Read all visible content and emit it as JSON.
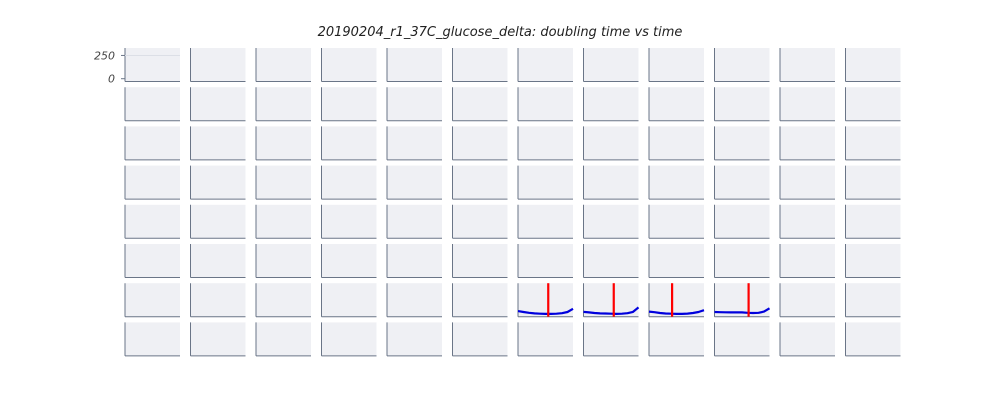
{
  "chart_data": {
    "type": "line",
    "title": "20190204_r1_37C_glucose_delta: doubling time vs time",
    "grid": {
      "rows": 8,
      "cols": 12
    },
    "y_ticks": [
      "250",
      "0"
    ],
    "ylim": [
      -30,
      330
    ],
    "colors": {
      "panel_bg": "#eff0f4",
      "axis": "#6a7587",
      "curve": "#0000dd",
      "marker": "#ff0000"
    },
    "series": [
      {
        "name": "row7-col7",
        "row": 6,
        "col": 6,
        "x": [
          0,
          0.1,
          0.2,
          0.3,
          0.4,
          0.5,
          0.6,
          0.7,
          0.8,
          0.9,
          1.0
        ],
        "y": [
          30,
          20,
          12,
          6,
          2,
          0,
          0,
          2,
          8,
          20,
          55
        ],
        "marker_x": 0.55
      },
      {
        "name": "row7-col8",
        "row": 6,
        "col": 7,
        "x": [
          0,
          0.1,
          0.2,
          0.3,
          0.4,
          0.5,
          0.6,
          0.7,
          0.8,
          0.9,
          1.0
        ],
        "y": [
          22,
          16,
          10,
          6,
          4,
          2,
          0,
          2,
          8,
          22,
          70
        ],
        "marker_x": 0.55
      },
      {
        "name": "row7-col9",
        "row": 6,
        "col": 8,
        "x": [
          0,
          0.1,
          0.2,
          0.3,
          0.4,
          0.5,
          0.6,
          0.7,
          0.8,
          0.9,
          1.0
        ],
        "y": [
          25,
          18,
          10,
          4,
          2,
          0,
          0,
          3,
          10,
          20,
          40
        ],
        "marker_x": 0.42
      },
      {
        "name": "row7-col10",
        "row": 6,
        "col": 9,
        "x": [
          0,
          0.1,
          0.2,
          0.3,
          0.4,
          0.5,
          0.6,
          0.7,
          0.8,
          0.9,
          1.0
        ],
        "y": [
          20,
          18,
          17,
          16,
          16,
          16,
          12,
          10,
          12,
          25,
          60
        ],
        "marker_x": 0.62
      }
    ]
  }
}
